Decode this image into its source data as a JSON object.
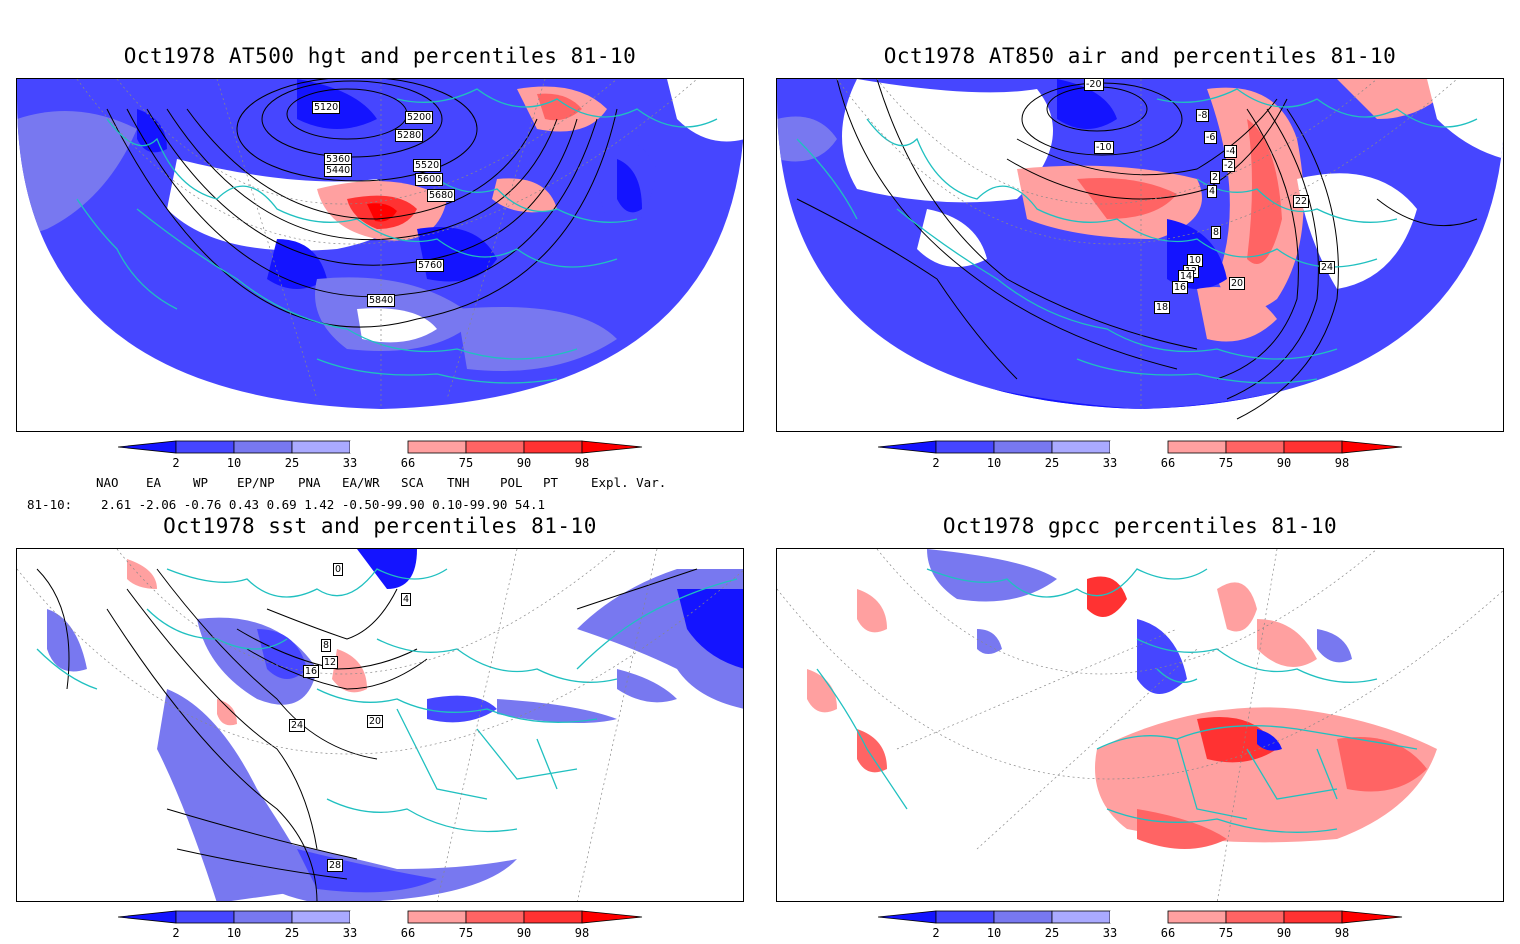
{
  "panels": [
    {
      "title": "Oct1978 AT500 hgt and percentiles 81-10",
      "contour_labels": [
        "5120",
        "5200",
        "5280",
        "5360",
        "5440",
        "5520",
        "5600",
        "5680",
        "5760",
        "5840"
      ]
    },
    {
      "title": "Oct1978 AT850 air and percentiles 81-10",
      "contour_labels": [
        "-20",
        "-10",
        "-8",
        "-6",
        "-4",
        "-2",
        "2",
        "4",
        "8",
        "10",
        "12",
        "14",
        "16",
        "18",
        "20",
        "22",
        "24"
      ]
    },
    {
      "title": "Oct1978 sst and percentiles 81-10",
      "contour_labels": [
        "0",
        "4",
        "8",
        "12",
        "16",
        "20",
        "24",
        "28"
      ]
    },
    {
      "title": "Oct1978 gpcc percentiles 81-10",
      "contour_labels": []
    }
  ],
  "colorbar": {
    "ticks": [
      "2",
      "10",
      "25",
      "33",
      "66",
      "75",
      "90",
      "98"
    ],
    "colors": [
      "#1414ff",
      "#4646ff",
      "#7878f0",
      "#aaaaff",
      "#ffffff",
      "#ffa0a0",
      "#ff6464",
      "#ff3232",
      "#ff0000"
    ]
  },
  "indices": {
    "headers": [
      "NAO",
      "EA",
      "WP",
      "EP/NP",
      "PNA",
      "EA/WR",
      "SCA",
      "TNH",
      "POL",
      "PT",
      "Expl. Var."
    ],
    "row_label": "81-10:",
    "values": "2.61 -2.06 -0.76  0.43  0.69  1.42 -0.50-99.90  0.10-99.90   54.1"
  },
  "legend_colors": {
    "coast": "#20c0c0",
    "contour": "#000000",
    "grid": "#888888"
  }
}
